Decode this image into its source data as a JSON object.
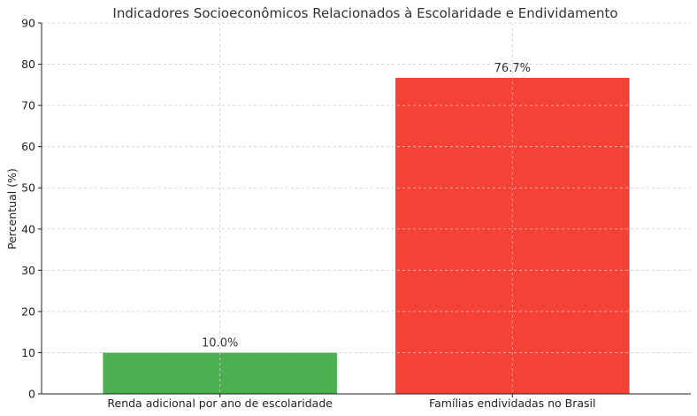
{
  "chart_data": {
    "type": "bar",
    "title": "Indicadores Socioeconômicos Relacionados à Escolaridade e Endividamento",
    "xlabel": "",
    "ylabel": "Percentual (%)",
    "categories": [
      "Renda adicional por ano de escolaridade",
      "Famílias endividadas no Brasil"
    ],
    "values": [
      10.0,
      76.7
    ],
    "data_labels": [
      "10.0%",
      "76.7%"
    ],
    "colors": [
      "#4caf50",
      "#f44336"
    ],
    "ylim": [
      0,
      90
    ],
    "yticks": [
      0,
      10,
      20,
      30,
      40,
      50,
      60,
      70,
      80,
      90
    ],
    "grid": true,
    "legend": "none"
  }
}
